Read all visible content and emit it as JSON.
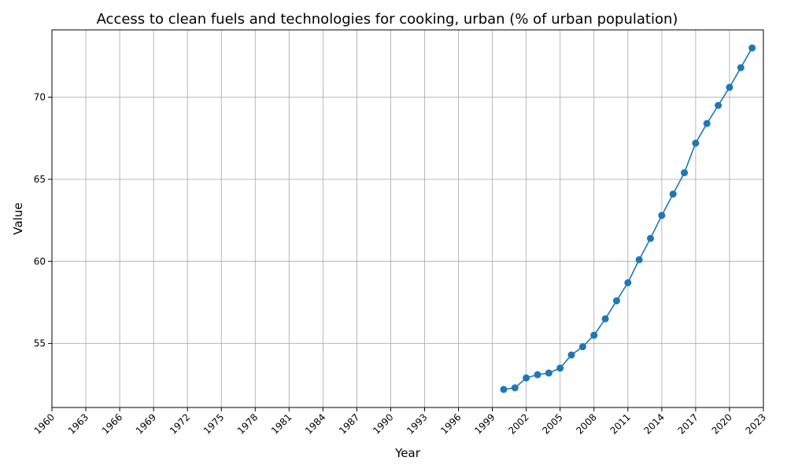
{
  "chart_data": {
    "type": "line",
    "title": "Access to clean fuels and technologies for cooking, urban (% of urban population)",
    "xlabel": "Year",
    "ylabel": "Value",
    "xlim": [
      1960,
      2023
    ],
    "ylim": [
      51.1,
      74.1
    ],
    "grid": true,
    "x_ticks": [
      1960,
      1963,
      1966,
      1969,
      1972,
      1975,
      1978,
      1981,
      1984,
      1987,
      1990,
      1993,
      1996,
      1999,
      2002,
      2005,
      2008,
      2011,
      2014,
      2017,
      2020,
      2023
    ],
    "y_ticks": [
      55,
      60,
      65,
      70
    ],
    "series": [
      {
        "color": "#1f77b4",
        "x": [
          2000,
          2001,
          2002,
          2003,
          2004,
          2005,
          2006,
          2007,
          2008,
          2009,
          2010,
          2011,
          2012,
          2013,
          2014,
          2015,
          2016,
          2017,
          2018,
          2019,
          2020,
          2021,
          2022
        ],
        "y": [
          52.2,
          52.3,
          52.9,
          53.1,
          53.2,
          53.5,
          54.3,
          54.8,
          55.5,
          56.5,
          57.6,
          58.7,
          60.1,
          61.4,
          62.8,
          64.1,
          65.4,
          67.2,
          68.4,
          69.5,
          70.6,
          71.8,
          73.0
        ]
      }
    ]
  }
}
